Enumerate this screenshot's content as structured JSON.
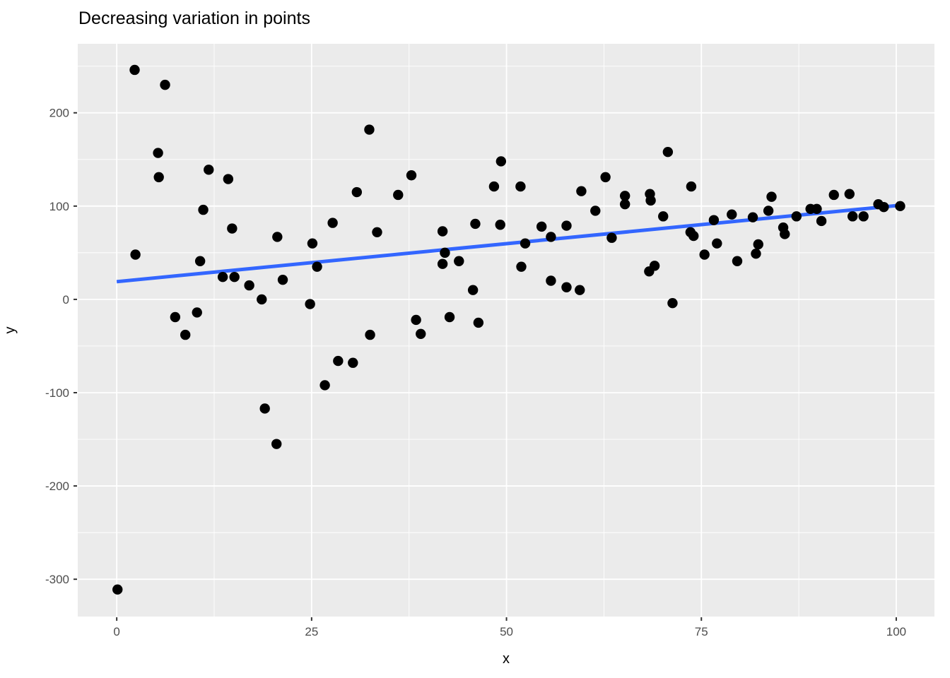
{
  "chart": {
    "title": "Decreasing variation in points",
    "xlabel": "x",
    "ylabel": "y"
  },
  "chart_data": {
    "type": "scatter",
    "title": "Decreasing variation in points",
    "xlabel": "x",
    "ylabel": "y",
    "grid": true,
    "legend_position": "none",
    "xlim": [
      -5.0,
      104.9
    ],
    "ylim": [
      -340,
      274
    ],
    "x_ticks": [
      0,
      25,
      50,
      75,
      100
    ],
    "y_ticks": [
      -300,
      -200,
      -100,
      0,
      100,
      200
    ],
    "x_minor_ticks": [
      12.5,
      37.5,
      62.5,
      87.5
    ],
    "y_minor_ticks": [
      -250,
      -150,
      -50,
      50,
      150,
      250
    ],
    "points": [
      [
        0.1,
        -311
      ],
      [
        2.3,
        246
      ],
      [
        2.4,
        48
      ],
      [
        5.3,
        157
      ],
      [
        5.4,
        131
      ],
      [
        6.2,
        230
      ],
      [
        7.5,
        -19
      ],
      [
        8.8,
        -38
      ],
      [
        10.3,
        -14
      ],
      [
        10.7,
        41
      ],
      [
        11.1,
        96
      ],
      [
        11.8,
        139
      ],
      [
        13.6,
        24
      ],
      [
        14.3,
        129
      ],
      [
        14.8,
        76
      ],
      [
        15.1,
        24
      ],
      [
        17.0,
        15
      ],
      [
        18.6,
        0
      ],
      [
        19.0,
        -117
      ],
      [
        20.5,
        -155
      ],
      [
        20.6,
        67
      ],
      [
        21.3,
        21
      ],
      [
        24.8,
        -5
      ],
      [
        25.1,
        60
      ],
      [
        25.7,
        35
      ],
      [
        26.7,
        -92
      ],
      [
        27.7,
        82
      ],
      [
        28.4,
        -66
      ],
      [
        30.3,
        -68
      ],
      [
        30.8,
        115
      ],
      [
        32.4,
        182
      ],
      [
        32.5,
        -38
      ],
      [
        33.4,
        72
      ],
      [
        36.1,
        112
      ],
      [
        37.8,
        133
      ],
      [
        38.4,
        -22
      ],
      [
        39.0,
        -37
      ],
      [
        41.8,
        73
      ],
      [
        41.8,
        38
      ],
      [
        42.1,
        50
      ],
      [
        42.7,
        -19
      ],
      [
        43.9,
        41
      ],
      [
        45.7,
        10
      ],
      [
        46.0,
        81
      ],
      [
        46.4,
        -25
      ],
      [
        48.4,
        121
      ],
      [
        49.2,
        80
      ],
      [
        49.3,
        148
      ],
      [
        51.8,
        121
      ],
      [
        51.9,
        35
      ],
      [
        52.4,
        60
      ],
      [
        54.5,
        78
      ],
      [
        55.7,
        67
      ],
      [
        55.7,
        20
      ],
      [
        57.7,
        79
      ],
      [
        57.7,
        13
      ],
      [
        59.4,
        10
      ],
      [
        59.6,
        116
      ],
      [
        61.4,
        95
      ],
      [
        62.7,
        131
      ],
      [
        63.5,
        66
      ],
      [
        65.2,
        111
      ],
      [
        65.2,
        102
      ],
      [
        68.3,
        30
      ],
      [
        68.4,
        113
      ],
      [
        68.5,
        106
      ],
      [
        69.0,
        36
      ],
      [
        70.1,
        89
      ],
      [
        70.7,
        158
      ],
      [
        71.3,
        -4
      ],
      [
        73.6,
        72
      ],
      [
        73.7,
        121
      ],
      [
        74.0,
        68
      ],
      [
        75.4,
        48
      ],
      [
        76.6,
        85
      ],
      [
        77.0,
        60
      ],
      [
        78.9,
        91
      ],
      [
        79.6,
        41
      ],
      [
        81.6,
        88
      ],
      [
        82.0,
        49
      ],
      [
        82.3,
        59
      ],
      [
        83.6,
        95
      ],
      [
        84.0,
        110
      ],
      [
        85.5,
        77
      ],
      [
        85.7,
        70
      ],
      [
        87.2,
        89
      ],
      [
        89.0,
        97
      ],
      [
        89.8,
        97
      ],
      [
        90.4,
        84
      ],
      [
        92.0,
        112
      ],
      [
        94.0,
        113
      ],
      [
        94.4,
        89
      ],
      [
        95.8,
        89
      ],
      [
        97.7,
        102
      ],
      [
        98.4,
        99
      ],
      [
        100.5,
        100
      ]
    ],
    "trend_line": {
      "type": "linear",
      "x_start": 0,
      "y_start": 19,
      "x_end": 100.6,
      "y_end": 101
    },
    "colors": {
      "point": "#000000",
      "trend_line": "#3366FF",
      "panel_background": "#EBEBEB",
      "grid_major": "#FFFFFF",
      "grid_minor": "#FFFFFF",
      "tick_label": "#4D4D4D",
      "tick_mark": "#333333",
      "title": "#000000",
      "axis_title": "#000000",
      "page_background": "#FFFFFF"
    }
  }
}
